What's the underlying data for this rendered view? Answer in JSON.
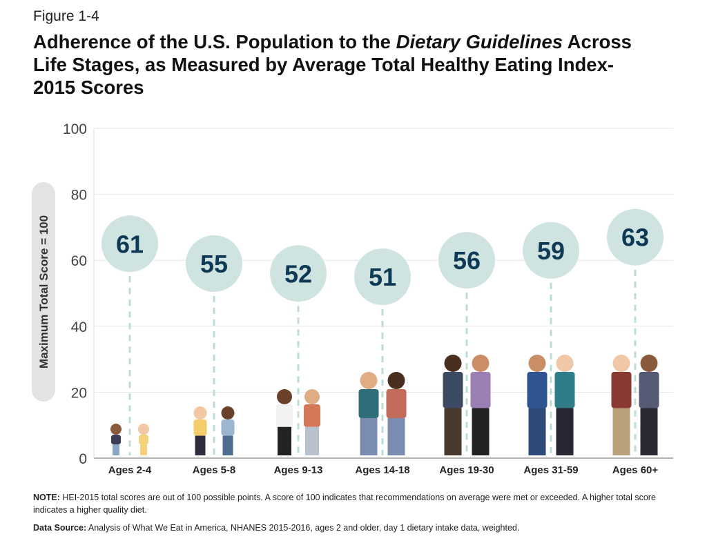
{
  "figure_label": "Figure 1-4",
  "title_part1": "Adherence of the U.S. Population to the ",
  "title_italic": "Dietary Guidelines",
  "title_part2": " Across Life Stages, as Measured by Average Total Healthy Eating Index-2015 Scores",
  "note_label": "NOTE:",
  "note_text": " HEI-2015 total scores are out of 100 possible points. A score of 100 indicates that recommendations on average were met or exceeded. A higher total score indicates a higher quality diet.",
  "source_label": "Data Source:",
  "source_text": " Analysis of What We Eat in America, NHANES 2015-2016, ages 2 and older, day 1 dietary intake data, weighted.",
  "colors": {
    "bubble": "#cfe4e0",
    "value_text": "#0e3a55",
    "dash": "#bcdcd6",
    "grid": "#e6e6e6",
    "ylabel_pill": "#e3e3e3"
  },
  "chart_data": {
    "type": "scatter",
    "ylabel": "Maximum Total Score = 100",
    "ylim": [
      0,
      100
    ],
    "yticks": [
      "0",
      "20",
      "40",
      "60",
      "80",
      "100"
    ],
    "grid": true,
    "categories": [
      "Ages 2-4",
      "Ages 5-8",
      "Ages 9-13",
      "Ages 14-18",
      "Ages 19-30",
      "Ages 31-59",
      "Ages 60+"
    ],
    "values": [
      61,
      55,
      52,
      51,
      56,
      59,
      63
    ]
  }
}
